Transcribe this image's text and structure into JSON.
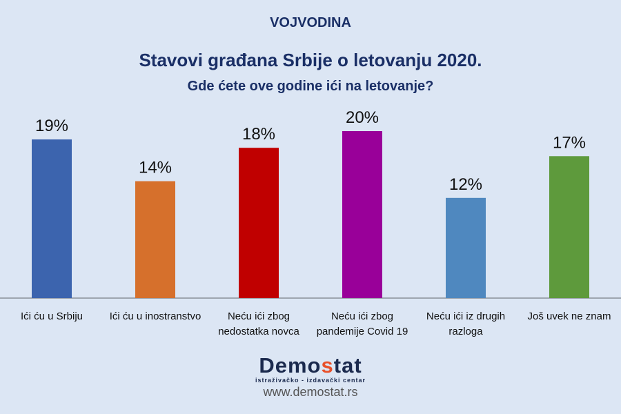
{
  "header": {
    "region": "VOJVODINA",
    "title": "Stavovi građana Srbije o letovanju 2020.",
    "subtitle": "Gde ćete ove godine ići na letovanje?"
  },
  "chart_data": {
    "type": "bar",
    "title": "Stavovi građana Srbije o letovanju 2020.",
    "subtitle": "Gde ćete ove godine ići na letovanje?",
    "categories": [
      "Ići ću u Srbiju",
      "Ići ću u inostranstvo",
      "Neću ići zbog nedostatka novca",
      "Neću ići zbog pandemije Covid 19",
      "Neću ići iz drugih razloga",
      "Još uvek ne znam"
    ],
    "category_lines": [
      [
        "Ići ću u Srbiju"
      ],
      [
        "Ići ću u inostranstvo"
      ],
      [
        "Neću ići zbog",
        "nedostatka novca"
      ],
      [
        "Neću ići zbog",
        "pandemije Covid 19"
      ],
      [
        "Neću ići iz drugih",
        "razloga"
      ],
      [
        "Još uvek ne znam"
      ]
    ],
    "values": [
      19,
      14,
      18,
      20,
      12,
      17
    ],
    "labels": [
      "19%",
      "14%",
      "18%",
      "20%",
      "12%",
      "17%"
    ],
    "colors": [
      "#3c64ae",
      "#d6702c",
      "#c00000",
      "#990099",
      "#4f88bf",
      "#5e9a3c"
    ],
    "ylim": [
      0,
      20
    ],
    "grid": false,
    "legend": "none"
  },
  "footer": {
    "brand_a": "Demo",
    "brand_s": "s",
    "brand_b": "tat",
    "tagline": "istraživačko - izdavački  centar",
    "url": "www.demostat.rs"
  }
}
